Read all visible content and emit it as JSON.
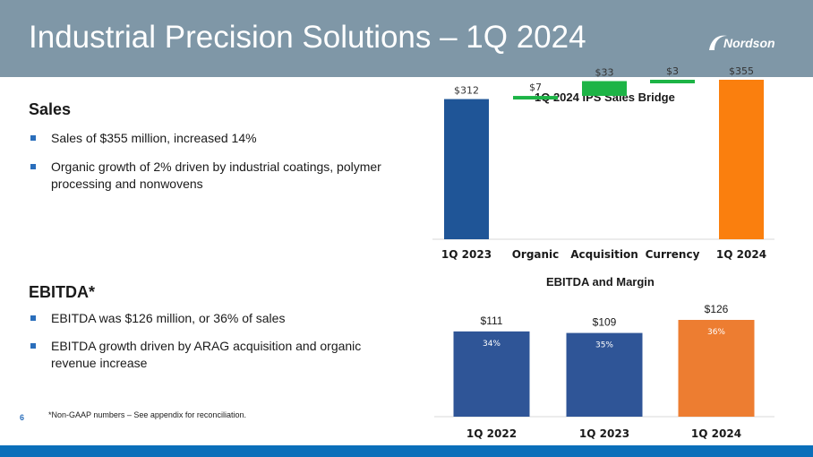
{
  "header": {
    "title": "Industrial Precision Solutions – 1Q 2024",
    "logo_text": "Nordson"
  },
  "sales": {
    "heading": "Sales",
    "bullets": [
      "Sales of $355 million, increased 14%",
      "Organic growth of 2% driven by industrial coatings, polymer processing and nonwovens"
    ]
  },
  "ebitda": {
    "heading": "EBITDA*",
    "bullets": [
      "EBITDA was $126 million, or 36% of sales",
      "EBITDA growth driven by ARAG acquisition and organic revenue increase"
    ]
  },
  "footnote": "*Non-GAAP numbers – See appendix for reconciliation.",
  "page_number": "6",
  "colors": {
    "header_bg": "#7f97a7",
    "bridge_start": "#1f5597",
    "bridge_increase": "#1db446",
    "bridge_end": "#fa7f0e",
    "ebitda_bar": "#2f5597",
    "ebitda_highlight": "#ed7d31",
    "footer": "#0b6fba"
  },
  "chart_data": [
    {
      "type": "bar",
      "subtype": "waterfall",
      "title": "1Q 2024 IPS Sales Bridge",
      "categories": [
        "1Q 2023",
        "Organic",
        "Acquisition",
        "Currency",
        "1Q 2024"
      ],
      "values": [
        312,
        7,
        33,
        3,
        355
      ],
      "labels": [
        "$312",
        "$7",
        "$33",
        "$3",
        "$355"
      ],
      "kinds": [
        "total",
        "increase",
        "increase",
        "increase",
        "total"
      ],
      "ylim": [
        0,
        400
      ]
    },
    {
      "type": "bar",
      "title": "EBITDA and Margin",
      "categories": [
        "1Q 2022",
        "1Q 2023",
        "1Q 2024"
      ],
      "values": [
        111,
        109,
        126
      ],
      "labels": [
        "$111",
        "$109",
        "$126"
      ],
      "margins": [
        "34%",
        "35%",
        "36%"
      ],
      "ylim": [
        0,
        140
      ]
    }
  ]
}
